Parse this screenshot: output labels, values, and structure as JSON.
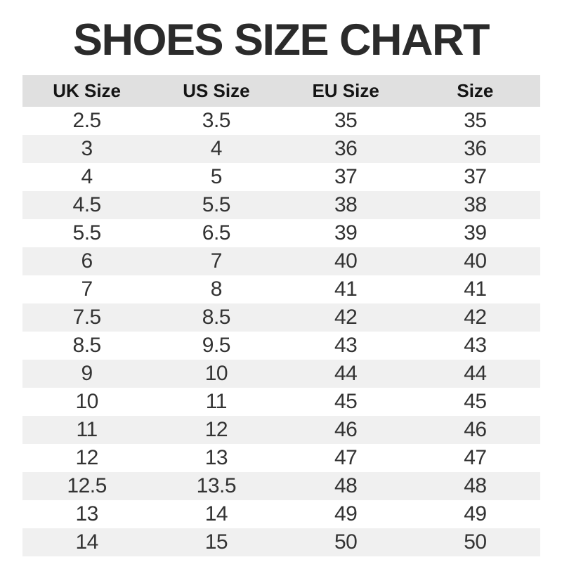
{
  "chart_data": {
    "type": "table",
    "title": "SHOES SIZE CHART",
    "columns": [
      "UK Size",
      "US Size",
      "EU Size",
      "Size"
    ],
    "rows": [
      [
        "2.5",
        "3.5",
        "35",
        "35"
      ],
      [
        "3",
        "4",
        "36",
        "36"
      ],
      [
        "4",
        "5",
        "37",
        "37"
      ],
      [
        "4.5",
        "5.5",
        "38",
        "38"
      ],
      [
        "5.5",
        "6.5",
        "39",
        "39"
      ],
      [
        "6",
        "7",
        "40",
        "40"
      ],
      [
        "7",
        "8",
        "41",
        "41"
      ],
      [
        "7.5",
        "8.5",
        "42",
        "42"
      ],
      [
        "8.5",
        "9.5",
        "43",
        "43"
      ],
      [
        "9",
        "10",
        "44",
        "44"
      ],
      [
        "10",
        "11",
        "45",
        "45"
      ],
      [
        "11",
        "12",
        "46",
        "46"
      ],
      [
        "12",
        "13",
        "47",
        "47"
      ],
      [
        "12.5",
        "13.5",
        "48",
        "48"
      ],
      [
        "13",
        "14",
        "49",
        "49"
      ],
      [
        "14",
        "15",
        "50",
        "50"
      ]
    ],
    "layout": {
      "striped": true,
      "stripe_on": "even-rows",
      "grid": false,
      "column_alignment": "center"
    },
    "colors": {
      "header_bg": "#e0e0e0",
      "stripe_bg": "#f0f0f0",
      "row_bg": "#ffffff",
      "title_text": "#2b2b2b",
      "header_text": "#141414",
      "cell_text": "#333333"
    }
  }
}
